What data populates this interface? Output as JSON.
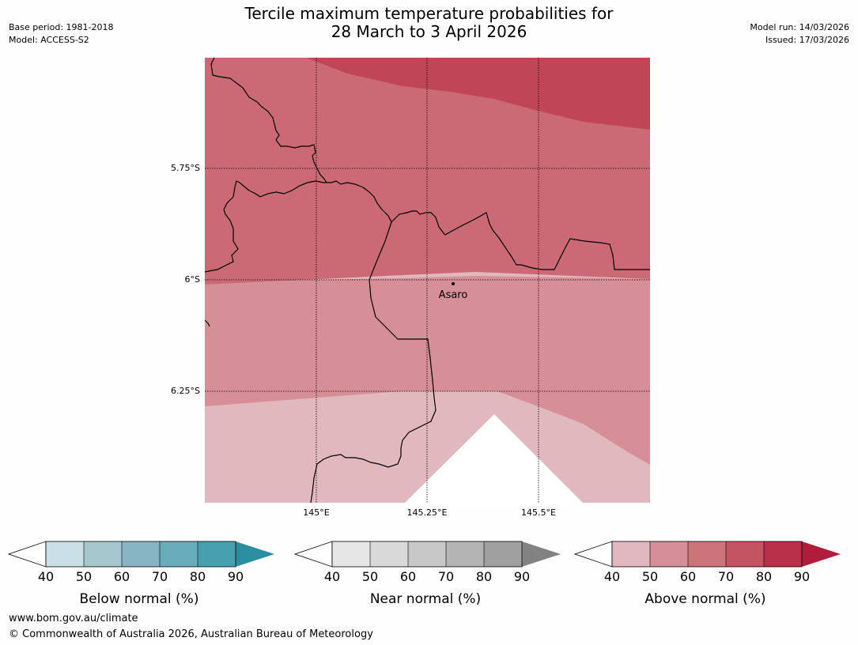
{
  "header": {
    "title_line1": "Tercile maximum temperature probabilities for",
    "title_line2": "28 March to 3 April 2026",
    "base_period": "Base period: 1981-2018",
    "model": "Model: ACCESS-S2",
    "model_run": "Model run: 14/03/2026",
    "issued": "Issued: 17/03/2026"
  },
  "map": {
    "lat_labels": [
      "5.75°S",
      "6°S",
      "6.25°S"
    ],
    "lon_labels": [
      "145°E",
      "145.25°E",
      "145.5°E"
    ],
    "place": {
      "name": "Asaro"
    },
    "colors": {
      "above_90": "#c04656",
      "above_70": "#cb6a74",
      "above_60": "#d78f97",
      "above_50": "#e1b8bd",
      "below_40": "#ffffff"
    }
  },
  "legends": [
    {
      "title": "Below normal (%)",
      "ticks": [
        "40",
        "50",
        "60",
        "70",
        "80",
        "90"
      ],
      "colors": [
        "#ffffff",
        "#c9e0e6",
        "#a6c7ce",
        "#88b5c3",
        "#69acbb",
        "#47a0b0",
        "#2a8da0"
      ]
    },
    {
      "title": "Near normal (%)",
      "ticks": [
        "40",
        "50",
        "60",
        "70",
        "80",
        "90"
      ],
      "colors": [
        "#ffffff",
        "#e6e6e6",
        "#d9d9d9",
        "#c8c8c8",
        "#b4b4b4",
        "#a0a0a0",
        "#828282"
      ]
    },
    {
      "title": "Above normal (%)",
      "ticks": [
        "40",
        "50",
        "60",
        "70",
        "80",
        "90"
      ],
      "colors": [
        "#ffffff",
        "#e1b8bd",
        "#d78f97",
        "#cc747a",
        "#c55463",
        "#b9304a",
        "#b01d3c"
      ]
    }
  ],
  "footer": {
    "website": "www.bom.gov.au/climate",
    "copyright": "© Commonwealth of Australia 2026, Australian Bureau of Meteorology"
  }
}
